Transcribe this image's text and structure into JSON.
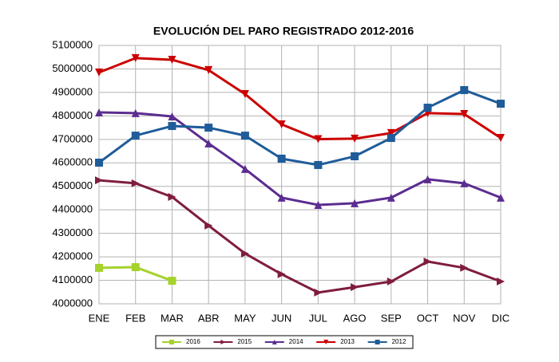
{
  "chart_data": {
    "type": "line",
    "title": "EVOLUCIÓN DEL PARO REGISTRADO 2012-2016",
    "categories": [
      "ENE",
      "FEB",
      "MAR",
      "ABR",
      "MAY",
      "JUN",
      "JUL",
      "AGO",
      "SEP",
      "OCT",
      "NOV",
      "DIC"
    ],
    "series": [
      {
        "name": "2016",
        "color": "#a5d22b",
        "marker": "square",
        "values": [
          4153000,
          4156000,
          4098000,
          null,
          null,
          null,
          null,
          null,
          null,
          null,
          null,
          null
        ]
      },
      {
        "name": "2015",
        "color": "#7f1d3f",
        "marker": "triangle-right",
        "values": [
          4526000,
          4513000,
          4455000,
          4333000,
          4214000,
          4126000,
          4048000,
          4071000,
          4095000,
          4180000,
          4153000,
          4095000
        ]
      },
      {
        "name": "2014",
        "color": "#5b2d90",
        "marker": "triangle-up",
        "values": [
          4815000,
          4812000,
          4798000,
          4683000,
          4574000,
          4452000,
          4421000,
          4428000,
          4452000,
          4530000,
          4513000,
          4452000
        ]
      },
      {
        "name": "2013",
        "color": "#cc0000",
        "marker": "triangle-down",
        "values": [
          4985000,
          5046000,
          5039000,
          4995000,
          4893000,
          4764000,
          4701000,
          4703000,
          4727000,
          4812000,
          4808000,
          4706000
        ]
      },
      {
        "name": "2012",
        "color": "#1f5c99",
        "marker": "square",
        "values": [
          4601000,
          4716000,
          4757000,
          4750000,
          4716000,
          4618000,
          4591000,
          4628000,
          4706000,
          4835000,
          4910000,
          4852000
        ]
      }
    ],
    "ylim": [
      4000000,
      5100000
    ],
    "yticks": [
      4000000,
      4100000,
      4200000,
      4300000,
      4400000,
      4500000,
      4600000,
      4700000,
      4800000,
      4900000,
      5000000,
      5100000
    ],
    "grid": true,
    "legend": "bottom"
  }
}
